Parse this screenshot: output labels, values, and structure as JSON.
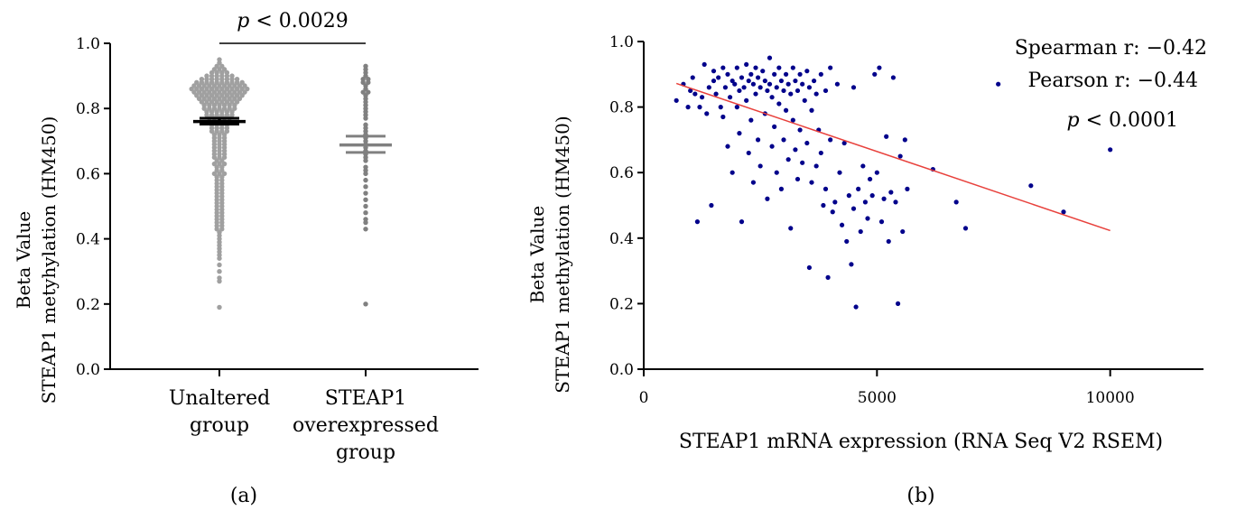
{
  "chart_data": [
    {
      "type": "scatter",
      "panel_label": "(a)",
      "ylabel_line1": "Beta Value",
      "ylabel_line2": "STEAP1 metyhylation (HM450)",
      "ylim": [
        0,
        1.0
      ],
      "yticks": [
        "0.0",
        "0.2",
        "0.4",
        "0.6",
        "0.8",
        "1.0"
      ],
      "categories": [
        {
          "lines": [
            "Unaltered",
            "group"
          ]
        },
        {
          "lines": [
            "STEAP1",
            "overexpressed",
            "group"
          ]
        }
      ],
      "significance": {
        "p_italic": "p",
        "text": " < 0.0029"
      },
      "groups": [
        {
          "mean": 0.76,
          "sem_low": 0.752,
          "sem_high": 0.77,
          "point_color": "#a0a0a0",
          "bar_color": "#000000",
          "values": [
            0.95,
            0.94,
            0.93,
            0.93,
            0.92,
            0.92,
            0.92,
            0.91,
            0.91,
            0.91,
            0.91,
            0.9,
            0.9,
            0.9,
            0.9,
            0.9,
            0.9,
            0.89,
            0.89,
            0.89,
            0.89,
            0.89,
            0.89,
            0.89,
            0.89,
            0.88,
            0.88,
            0.88,
            0.88,
            0.88,
            0.88,
            0.88,
            0.88,
            0.88,
            0.88,
            0.87,
            0.87,
            0.87,
            0.87,
            0.87,
            0.87,
            0.87,
            0.87,
            0.87,
            0.87,
            0.87,
            0.86,
            0.86,
            0.86,
            0.86,
            0.86,
            0.86,
            0.86,
            0.86,
            0.86,
            0.86,
            0.86,
            0.86,
            0.85,
            0.85,
            0.85,
            0.85,
            0.85,
            0.85,
            0.85,
            0.85,
            0.85,
            0.85,
            0.85,
            0.84,
            0.84,
            0.84,
            0.84,
            0.84,
            0.84,
            0.84,
            0.84,
            0.84,
            0.84,
            0.83,
            0.83,
            0.83,
            0.83,
            0.83,
            0.83,
            0.83,
            0.83,
            0.83,
            0.82,
            0.82,
            0.82,
            0.82,
            0.82,
            0.82,
            0.82,
            0.82,
            0.81,
            0.81,
            0.81,
            0.81,
            0.81,
            0.81,
            0.81,
            0.8,
            0.8,
            0.8,
            0.8,
            0.8,
            0.8,
            0.8,
            0.79,
            0.79,
            0.79,
            0.79,
            0.79,
            0.79,
            0.78,
            0.78,
            0.78,
            0.78,
            0.78,
            0.78,
            0.77,
            0.77,
            0.77,
            0.77,
            0.77,
            0.76,
            0.76,
            0.76,
            0.76,
            0.76,
            0.75,
            0.75,
            0.75,
            0.75,
            0.74,
            0.74,
            0.74,
            0.74,
            0.73,
            0.73,
            0.73,
            0.73,
            0.72,
            0.72,
            0.72,
            0.71,
            0.71,
            0.71,
            0.7,
            0.7,
            0.7,
            0.69,
            0.69,
            0.69,
            0.68,
            0.68,
            0.68,
            0.67,
            0.67,
            0.67,
            0.66,
            0.66,
            0.66,
            0.65,
            0.65,
            0.65,
            0.64,
            0.64,
            0.63,
            0.63,
            0.63,
            0.62,
            0.62,
            0.61,
            0.61,
            0.6,
            0.6,
            0.6,
            0.59,
            0.59,
            0.58,
            0.58,
            0.57,
            0.57,
            0.56,
            0.56,
            0.55,
            0.55,
            0.54,
            0.54,
            0.53,
            0.53,
            0.52,
            0.52,
            0.51,
            0.51,
            0.5,
            0.5,
            0.49,
            0.49,
            0.48,
            0.48,
            0.47,
            0.47,
            0.46,
            0.46,
            0.45,
            0.45,
            0.44,
            0.44,
            0.43,
            0.43,
            0.42,
            0.41,
            0.4,
            0.39,
            0.38,
            0.37,
            0.36,
            0.35,
            0.34,
            0.32,
            0.3,
            0.28,
            0.27,
            0.19
          ]
        },
        {
          "mean": 0.688,
          "sem_low": 0.665,
          "sem_high": 0.715,
          "point_color": "#808080",
          "bar_color": "#808080",
          "values": [
            0.93,
            0.92,
            0.91,
            0.9,
            0.89,
            0.89,
            0.88,
            0.88,
            0.87,
            0.86,
            0.85,
            0.85,
            0.84,
            0.83,
            0.82,
            0.81,
            0.8,
            0.79,
            0.78,
            0.77,
            0.75,
            0.74,
            0.73,
            0.72,
            0.71,
            0.7,
            0.69,
            0.68,
            0.67,
            0.66,
            0.65,
            0.64,
            0.62,
            0.61,
            0.6,
            0.58,
            0.56,
            0.54,
            0.52,
            0.5,
            0.48,
            0.46,
            0.45,
            0.43,
            0.2
          ]
        }
      ]
    },
    {
      "type": "scatter",
      "panel_label": "(b)",
      "ylabel_line1": "Beta Value",
      "ylabel_line2": "STEAP1 methylation (HM450)",
      "xlabel": "STEAP1 mRNA expression (RNA Seq V2 RSEM)",
      "xlim": [
        0,
        12000
      ],
      "ylim": [
        0,
        1.0
      ],
      "xticks": [
        {
          "value": 0,
          "label": "0"
        },
        {
          "value": 5000,
          "label": "5000"
        },
        {
          "value": 10000,
          "label": "10000"
        }
      ],
      "yticks": [
        "0.0",
        "0.2",
        "0.4",
        "0.6",
        "0.8",
        "1.0"
      ],
      "point_color": "#00008b",
      "fit_color": "#e8413c",
      "fit_line": [
        [
          700,
          0.872
        ],
        [
          10000,
          0.423
        ]
      ],
      "annotations": {
        "spearman": "Spearman r: −0.42",
        "pearson": "Pearson r: −0.44",
        "p_italic": "p",
        "p_text": " < 0.0001"
      },
      "points": [
        [
          700,
          0.82
        ],
        [
          850,
          0.87
        ],
        [
          950,
          0.8
        ],
        [
          1000,
          0.85
        ],
        [
          1050,
          0.89
        ],
        [
          1100,
          0.84
        ],
        [
          1150,
          0.45
        ],
        [
          1200,
          0.8
        ],
        [
          1250,
          0.83
        ],
        [
          1300,
          0.93
        ],
        [
          1350,
          0.78
        ],
        [
          1400,
          0.86
        ],
        [
          1450,
          0.5
        ],
        [
          1500,
          0.91
        ],
        [
          1500,
          0.88
        ],
        [
          1550,
          0.84
        ],
        [
          1600,
          0.89
        ],
        [
          1650,
          0.8
        ],
        [
          1700,
          0.92
        ],
        [
          1700,
          0.77
        ],
        [
          1750,
          0.86
        ],
        [
          1800,
          0.9
        ],
        [
          1800,
          0.68
        ],
        [
          1850,
          0.83
        ],
        [
          1900,
          0.88
        ],
        [
          1900,
          0.6
        ],
        [
          1950,
          0.87
        ],
        [
          2000,
          0.92
        ],
        [
          2000,
          0.8
        ],
        [
          2050,
          0.85
        ],
        [
          2050,
          0.72
        ],
        [
          2100,
          0.89
        ],
        [
          2100,
          0.45
        ],
        [
          2150,
          0.86
        ],
        [
          2200,
          0.93
        ],
        [
          2200,
          0.82
        ],
        [
          2250,
          0.88
        ],
        [
          2250,
          0.66
        ],
        [
          2300,
          0.9
        ],
        [
          2300,
          0.76
        ],
        [
          2350,
          0.87
        ],
        [
          2350,
          0.57
        ],
        [
          2400,
          0.92
        ],
        [
          2400,
          0.84
        ],
        [
          2450,
          0.89
        ],
        [
          2450,
          0.7
        ],
        [
          2500,
          0.86
        ],
        [
          2500,
          0.62
        ],
        [
          2550,
          0.91
        ],
        [
          2600,
          0.88
        ],
        [
          2600,
          0.78
        ],
        [
          2650,
          0.85
        ],
        [
          2650,
          0.52
        ],
        [
          2700,
          0.95
        ],
        [
          2700,
          0.87
        ],
        [
          2750,
          0.83
        ],
        [
          2750,
          0.68
        ],
        [
          2800,
          0.9
        ],
        [
          2800,
          0.74
        ],
        [
          2850,
          0.86
        ],
        [
          2850,
          0.6
        ],
        [
          2900,
          0.92
        ],
        [
          2900,
          0.81
        ],
        [
          2950,
          0.88
        ],
        [
          2950,
          0.55
        ],
        [
          3000,
          0.85
        ],
        [
          3000,
          0.7
        ],
        [
          3050,
          0.9
        ],
        [
          3050,
          0.79
        ],
        [
          3100,
          0.87
        ],
        [
          3100,
          0.64
        ],
        [
          3150,
          0.84
        ],
        [
          3150,
          0.43
        ],
        [
          3200,
          0.92
        ],
        [
          3200,
          0.76
        ],
        [
          3250,
          0.88
        ],
        [
          3250,
          0.67
        ],
        [
          3300,
          0.85
        ],
        [
          3300,
          0.58
        ],
        [
          3350,
          0.9
        ],
        [
          3350,
          0.73
        ],
        [
          3400,
          0.87
        ],
        [
          3400,
          0.63
        ],
        [
          3450,
          0.82
        ],
        [
          3500,
          0.91
        ],
        [
          3500,
          0.69
        ],
        [
          3550,
          0.86
        ],
        [
          3550,
          0.31
        ],
        [
          3600,
          0.79
        ],
        [
          3600,
          0.57
        ],
        [
          3650,
          0.88
        ],
        [
          3700,
          0.84
        ],
        [
          3700,
          0.62
        ],
        [
          3750,
          0.73
        ],
        [
          3800,
          0.9
        ],
        [
          3800,
          0.66
        ],
        [
          3850,
          0.5
        ],
        [
          3900,
          0.85
        ],
        [
          3900,
          0.55
        ],
        [
          3950,
          0.28
        ],
        [
          4000,
          0.92
        ],
        [
          4000,
          0.7
        ],
        [
          4050,
          0.48
        ],
        [
          4100,
          0.51
        ],
        [
          4150,
          0.87
        ],
        [
          4200,
          0.6
        ],
        [
          4250,
          0.44
        ],
        [
          4300,
          0.69
        ],
        [
          4350,
          0.39
        ],
        [
          4400,
          0.53
        ],
        [
          4450,
          0.32
        ],
        [
          4500,
          0.86
        ],
        [
          4500,
          0.49
        ],
        [
          4550,
          0.19
        ],
        [
          4600,
          0.55
        ],
        [
          4650,
          0.42
        ],
        [
          4700,
          0.62
        ],
        [
          4750,
          0.51
        ],
        [
          4800,
          0.46
        ],
        [
          4850,
          0.58
        ],
        [
          4900,
          0.53
        ],
        [
          4950,
          0.9
        ],
        [
          5000,
          0.6
        ],
        [
          5050,
          0.92
        ],
        [
          5100,
          0.45
        ],
        [
          5150,
          0.52
        ],
        [
          5200,
          0.71
        ],
        [
          5250,
          0.39
        ],
        [
          5300,
          0.54
        ],
        [
          5350,
          0.89
        ],
        [
          5400,
          0.51
        ],
        [
          5450,
          0.2
        ],
        [
          5500,
          0.65
        ],
        [
          5550,
          0.42
        ],
        [
          5600,
          0.7
        ],
        [
          5650,
          0.55
        ],
        [
          6200,
          0.61
        ],
        [
          6700,
          0.51
        ],
        [
          6900,
          0.43
        ],
        [
          7600,
          0.87
        ],
        [
          8300,
          0.56
        ],
        [
          9000,
          0.48
        ],
        [
          10000,
          0.67
        ]
      ]
    }
  ]
}
